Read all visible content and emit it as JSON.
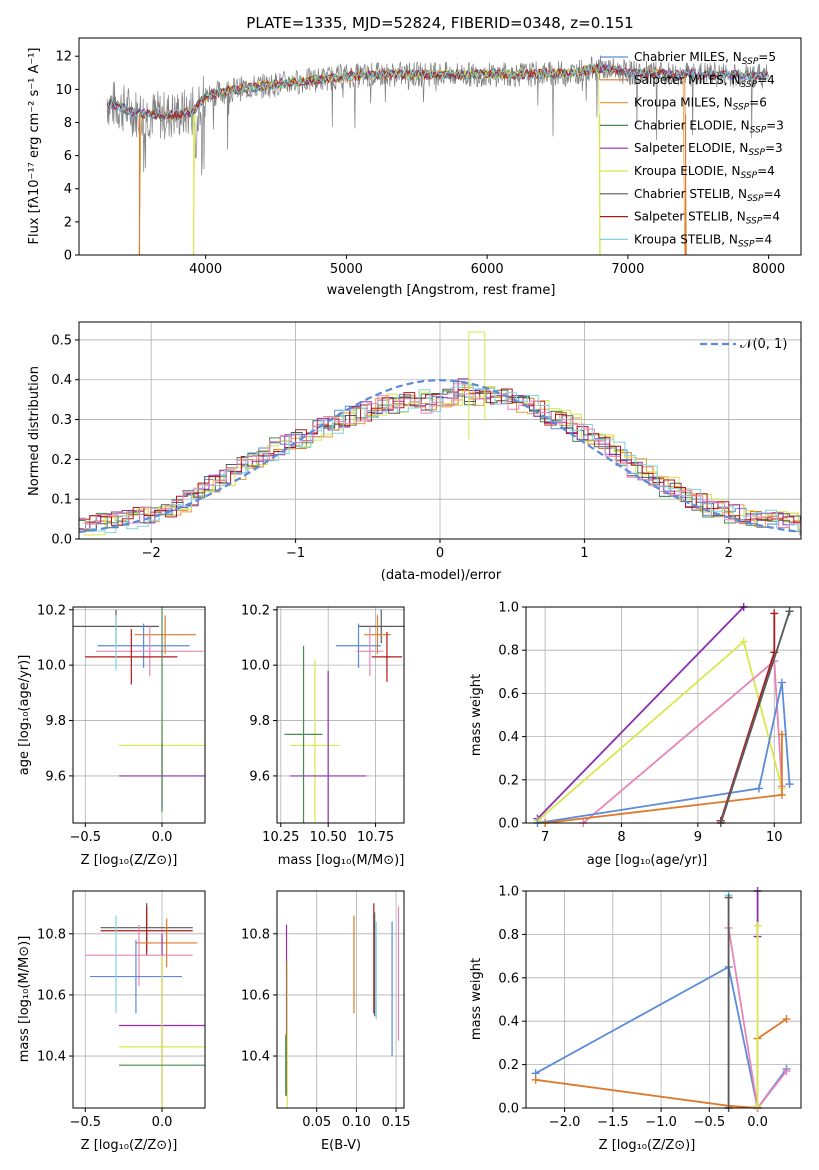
{
  "title": "PLATE=1335, MJD=52824, FIBERID=0348, z=0.151",
  "colors": {
    "chabrier_miles": "#5b8bd9",
    "salpeter_miles": "#e07a2a",
    "kroupa_miles": "#e8a040",
    "chabrier_elodie": "#4a8a50",
    "salpeter_elodie": "#8f2fb0",
    "kroupa_elodie": "#d8e84a",
    "chabrier_stelib": "#5a5a5a",
    "salpeter_stelib": "#b01818",
    "kroupa_stelib": "#80d4e0",
    "pink": "#e884b8",
    "data": "#808080",
    "normal": "#5b8bd9"
  },
  "panels": {
    "spectrum": {
      "xlabel": "wavelength [Angstrom, rest frame]",
      "ylabel": "Flux [fλ10⁻¹⁷ erg cm⁻² s⁻¹ A⁻¹]",
      "xticks": [
        "4000",
        "5000",
        "6000",
        "7000",
        "8000"
      ],
      "yticks": [
        "0",
        "2",
        "4",
        "6",
        "8",
        "10",
        "12"
      ],
      "legend": [
        "Chabrier MILES, N_SSP=5",
        "Salpeter MILES, N_SSP=4",
        "Kroupa MILES, N_SSP=6",
        "Chabrier ELODIE, N_SSP=3",
        "Salpeter ELODIE, N_SSP=3",
        "Kroupa ELODIE, N_SSP=4",
        "Chabrier STELIB, N_SSP=4",
        "Salpeter STELIB, N_SSP=4",
        "Kroupa STELIB, N_SSP=4"
      ]
    },
    "residual": {
      "xlabel": "(data-model)/error",
      "ylabel": "Normed distribution",
      "xticks": [
        "−2",
        "−1",
        "0",
        "1",
        "2"
      ],
      "yticks": [
        "0.0",
        "0.1",
        "0.2",
        "0.3",
        "0.4",
        "0.5"
      ],
      "legend": "𝒩(0, 1)"
    },
    "age_z": {
      "xlabel": "Z [log₁₀(Z/Z⊙)]",
      "ylabel": "age  [log₁₀(age/yr)]",
      "xticks": [
        "−0.5",
        "0.0"
      ],
      "yticks": [
        "9.6",
        "9.8",
        "10.0",
        "10.2"
      ]
    },
    "age_mass": {
      "xlabel": "mass [log₁₀(M/M⊙)]",
      "xticks": [
        "10.25",
        "10.50",
        "10.75"
      ],
      "yticks": [
        "9.6",
        "9.8",
        "10.0",
        "10.2"
      ]
    },
    "weight_age": {
      "xlabel": "age  [log₁₀(age/yr)]",
      "ylabel": "mass weight",
      "xticks": [
        "7",
        "8",
        "9",
        "10"
      ],
      "yticks": [
        "0.0",
        "0.2",
        "0.4",
        "0.6",
        "0.8",
        "1.0"
      ]
    },
    "mass_z": {
      "xlabel": "Z [log₁₀(Z/Z⊙)]",
      "ylabel": "mass [log₁₀(M/M⊙)]",
      "xticks": [
        "−0.5",
        "0.0"
      ],
      "yticks": [
        "10.4",
        "10.6",
        "10.8"
      ]
    },
    "mass_ebv": {
      "xlabel": "E(B-V)",
      "xticks": [
        "0.05",
        "0.10",
        "0.15"
      ],
      "yticks": [
        "10.4",
        "10.6",
        "10.8"
      ]
    },
    "weight_z": {
      "xlabel": "Z [log₁₀(Z/Z⊙)]",
      "ylabel": "mass weight",
      "xticks": [
        "−2.0",
        "−1.5",
        "−1.0",
        "−0.5",
        "0.0"
      ],
      "yticks": [
        "0.0",
        "0.2",
        "0.4",
        "0.6",
        "0.8",
        "1.0"
      ]
    }
  },
  "chart_data": [
    {
      "type": "line",
      "title": "PLATE=1335, MJD=52824, FIBERID=0348, z=0.151",
      "xlabel": "wavelength [Angstrom, rest frame]",
      "ylabel": "Flux [fλ10⁻¹⁷ erg cm⁻² s⁻¹ A⁻¹]",
      "xlim": [
        3100,
        8230
      ],
      "ylim": [
        0,
        13.1
      ],
      "series_names": [
        "Chabrier MILES, N_SSP=5",
        "Salpeter MILES, N_SSP=4",
        "Kroupa MILES, N_SSP=6",
        "Chabrier ELODIE, N_SSP=3",
        "Salpeter ELODIE, N_SSP=3",
        "Kroupa ELODIE, N_SSP=4",
        "Chabrier STELIB, N_SSP=4",
        "Salpeter STELIB, N_SSP=4",
        "Kroupa STELIB, N_SSP=4"
      ],
      "continuum": [
        [
          3300,
          9.2
        ],
        [
          3500,
          8.6
        ],
        [
          3700,
          8.4
        ],
        [
          3900,
          8.6
        ],
        [
          4000,
          9.6
        ],
        [
          4200,
          10.0
        ],
        [
          4500,
          10.3
        ],
        [
          4800,
          10.6
        ],
        [
          5000,
          10.8
        ],
        [
          5300,
          10.9
        ],
        [
          5600,
          10.9
        ],
        [
          6000,
          10.9
        ],
        [
          6300,
          10.9
        ],
        [
          6600,
          11.0
        ],
        [
          6800,
          11.3
        ],
        [
          7000,
          11.0
        ],
        [
          7300,
          10.9
        ],
        [
          7600,
          10.9
        ],
        [
          8000,
          10.8
        ]
      ],
      "model_drop_edges": [
        3500,
        3900,
        6800,
        7400
      ]
    },
    {
      "type": "line",
      "xlabel": "(data-model)/error",
      "ylabel": "Normed distribution",
      "xlim": [
        -2.5,
        2.5
      ],
      "ylim": [
        0,
        0.545
      ],
      "bin_width": 0.1,
      "bins_left": -2.5,
      "histogram": [
        0.03,
        0.035,
        0.04,
        0.045,
        0.05,
        0.055,
        0.06,
        0.065,
        0.07,
        0.09,
        0.1,
        0.12,
        0.14,
        0.15,
        0.17,
        0.19,
        0.2,
        0.22,
        0.23,
        0.24,
        0.25,
        0.26,
        0.28,
        0.29,
        0.3,
        0.31,
        0.32,
        0.33,
        0.34,
        0.34,
        0.35,
        0.35,
        0.34,
        0.35,
        0.36,
        0.38,
        0.36,
        0.37,
        0.36,
        0.36,
        0.34,
        0.34,
        0.33,
        0.31,
        0.3,
        0.29,
        0.27,
        0.26,
        0.24,
        0.22,
        0.2,
        0.18,
        0.16,
        0.15,
        0.13,
        0.12,
        0.1,
        0.09,
        0.08,
        0.07,
        0.065,
        0.06,
        0.055,
        0.05,
        0.045,
        0.04,
        0.035,
        0.03,
        0.03,
        0.028
      ],
      "normal_legend": "𝒩(0, 1)"
    },
    {
      "type": "scatter",
      "xlabel": "Z [log₁₀(Z/Z⊙)]",
      "ylabel": "age  [log₁₀(age/yr)]",
      "xlim": [
        -0.58,
        0.28
      ],
      "ylim": [
        9.43,
        10.21
      ],
      "points": [
        {
          "x": -0.3,
          "y": 10.14,
          "xerr": 0.28,
          "yerr": 0.06,
          "color": "chabrier_stelib"
        },
        {
          "x": 0.02,
          "y": 10.11,
          "xerr": 0.2,
          "yerr": 0.07,
          "color": "salpeter_miles"
        },
        {
          "x": -0.12,
          "y": 10.07,
          "xerr": 0.3,
          "yerr": 0.08,
          "color": "chabrier_miles"
        },
        {
          "x": -0.08,
          "y": 10.05,
          "xerr": 0.35,
          "yerr": 0.09,
          "color": "pink"
        },
        {
          "x": -0.2,
          "y": 10.03,
          "xerr": 0.3,
          "yerr": 0.1,
          "color": "salpeter_stelib"
        },
        {
          "x": -0.3,
          "y": 10.08,
          "xerr": 0.0,
          "yerr": 0.1,
          "color": "kroupa_stelib"
        },
        {
          "x": 0.0,
          "y": 9.71,
          "xerr": 0.28,
          "yerr": 0.12,
          "color": "kroupa_elodie"
        },
        {
          "x": 0.0,
          "y": 9.6,
          "xerr": 0.28,
          "yerr": 0.12,
          "color": "salpeter_elodie"
        },
        {
          "x": 0.0,
          "y": 9.85,
          "xerr": 0.0,
          "yerr": 0.38,
          "color": "chabrier_elodie"
        }
      ]
    },
    {
      "type": "scatter",
      "xlabel": "mass [log₁₀(M/M⊙)]",
      "xlim": [
        10.23,
        10.9
      ],
      "ylim": [
        9.43,
        10.21
      ],
      "points": [
        {
          "x": 10.78,
          "y": 10.14,
          "xerr": 0.12,
          "yerr": 0.06,
          "color": "chabrier_stelib"
        },
        {
          "x": 10.76,
          "y": 10.11,
          "xerr": 0.07,
          "yerr": 0.07,
          "color": "salpeter_miles"
        },
        {
          "x": 10.66,
          "y": 10.07,
          "xerr": 0.12,
          "yerr": 0.08,
          "color": "chabrier_miles"
        },
        {
          "x": 10.72,
          "y": 10.05,
          "xerr": 0.07,
          "yerr": 0.09,
          "color": "pink"
        },
        {
          "x": 10.81,
          "y": 10.03,
          "xerr": 0.08,
          "yerr": 0.09,
          "color": "salpeter_stelib"
        },
        {
          "x": 10.43,
          "y": 9.71,
          "xerr": 0.13,
          "yerr": 0.31,
          "color": "kroupa_elodie"
        },
        {
          "x": 10.5,
          "y": 9.6,
          "xerr": 0.2,
          "yerr": 0.38,
          "color": "salpeter_elodie"
        },
        {
          "x": 10.37,
          "y": 9.75,
          "xerr": 0.1,
          "yerr": 0.32,
          "color": "chabrier_elodie"
        }
      ]
    },
    {
      "type": "line",
      "xlabel": "age  [log₁₀(age/yr)]",
      "ylabel": "mass weight",
      "xlim": [
        6.75,
        10.35
      ],
      "ylim": [
        0,
        1.0
      ],
      "series": [
        {
          "color": "salpeter_elodie",
          "x": [
            6.9,
            9.6
          ],
          "y": [
            0.02,
            1.0
          ]
        },
        {
          "color": "kroupa_elodie",
          "x": [
            6.9,
            9.6,
            10.1
          ],
          "y": [
            0.01,
            0.84,
            0.16
          ]
        },
        {
          "color": "pink",
          "x": [
            7.5,
            10.0,
            10.1
          ],
          "y": [
            0.0,
            0.75,
            0.17
          ]
        },
        {
          "color": "chabrier_miles",
          "x": [
            6.9,
            9.8,
            10.1,
            10.2
          ],
          "y": [
            0.0,
            0.16,
            0.65,
            0.18
          ]
        },
        {
          "color": "salpeter_miles",
          "x": [
            7.0,
            10.1,
            10.1
          ],
          "y": [
            0.0,
            0.13,
            0.41
          ]
        },
        {
          "color": "salpeter_stelib",
          "x": [
            9.3,
            10.0,
            10.0
          ],
          "y": [
            0.01,
            0.79,
            0.97
          ]
        },
        {
          "color": "kroupa_stelib",
          "x": [
            9.3,
            10.2
          ],
          "y": [
            0.0,
            0.98
          ]
        },
        {
          "color": "chabrier_stelib",
          "x": [
            9.3,
            10.2
          ],
          "y": [
            0.0,
            0.98
          ]
        }
      ]
    },
    {
      "type": "scatter",
      "xlabel": "Z [log₁₀(Z/Z⊙)]",
      "ylabel": "mass [log₁₀(M/M⊙)]",
      "xlim": [
        -0.58,
        0.28
      ],
      "ylim": [
        10.23,
        10.94
      ],
      "points": [
        {
          "x": -0.1,
          "y": 10.82,
          "xerr": 0.3,
          "yerr": 0.08,
          "color": "chabrier_stelib"
        },
        {
          "x": -0.1,
          "y": 10.81,
          "xerr": 0.3,
          "yerr": 0.08,
          "color": "salpeter_stelib"
        },
        {
          "x": 0.03,
          "y": 10.77,
          "xerr": 0.2,
          "yerr": 0.08,
          "color": "salpeter_miles"
        },
        {
          "x": -0.15,
          "y": 10.73,
          "xerr": 0.35,
          "yerr": 0.1,
          "color": "pink"
        },
        {
          "x": -0.17,
          "y": 10.66,
          "xerr": 0.3,
          "yerr": 0.12,
          "color": "chabrier_miles"
        },
        {
          "x": -0.3,
          "y": 10.7,
          "xerr": 0.0,
          "yerr": 0.16,
          "color": "kroupa_stelib"
        },
        {
          "x": 0.0,
          "y": 10.5,
          "xerr": 0.28,
          "yerr": 0.3,
          "color": "salpeter_elodie"
        },
        {
          "x": 0.0,
          "y": 10.43,
          "xerr": 0.28,
          "yerr": 0.3,
          "color": "kroupa_elodie"
        },
        {
          "x": 0.0,
          "y": 10.37,
          "xerr": 0.28,
          "yerr": 0.0,
          "color": "chabrier_elodie"
        }
      ]
    },
    {
      "type": "scatter",
      "xlabel": "E(B-V)",
      "xlim": [
        0.0,
        0.16
      ],
      "ylim": [
        10.23,
        10.94
      ],
      "points": [
        {
          "x": 0.012,
          "y": 10.55,
          "yerr": 0.28,
          "color": "salpeter_elodie"
        },
        {
          "x": 0.013,
          "y": 10.43,
          "yerr": 0.28,
          "color": "kroupa_elodie"
        },
        {
          "x": 0.011,
          "y": 10.37,
          "yerr": 0.1,
          "color": "chabrier_elodie"
        },
        {
          "x": 0.097,
          "y": 10.7,
          "yerr": 0.16,
          "color": "salpeter_miles"
        },
        {
          "x": 0.122,
          "y": 10.72,
          "yerr": 0.18,
          "color": "salpeter_stelib"
        },
        {
          "x": 0.123,
          "y": 10.7,
          "yerr": 0.17,
          "color": "chabrier_stelib"
        },
        {
          "x": 0.125,
          "y": 10.68,
          "yerr": 0.16,
          "color": "kroupa_stelib"
        },
        {
          "x": 0.145,
          "y": 10.62,
          "yerr": 0.22,
          "color": "chabrier_miles"
        },
        {
          "x": 0.153,
          "y": 10.67,
          "yerr": 0.22,
          "color": "pink"
        }
      ]
    },
    {
      "type": "line",
      "xlabel": "Z [log₁₀(Z/Z⊙)]",
      "ylabel": "mass weight",
      "xlim": [
        -2.4,
        0.45
      ],
      "ylim": [
        0,
        1.0
      ],
      "series": [
        {
          "color": "chabrier_miles",
          "x": [
            -2.3,
            -0.3,
            0.0,
            0.3
          ],
          "y": [
            0.16,
            0.65,
            0.0,
            0.18
          ]
        },
        {
          "color": "salpeter_miles",
          "x": [
            -2.3,
            -0.3,
            0.0,
            0.0,
            0.3
          ],
          "y": [
            0.13,
            0.01,
            0.0,
            0.32,
            0.41
          ]
        },
        {
          "color": "pink",
          "x": [
            -0.3,
            0.0,
            0.3
          ],
          "y": [
            0.83,
            0.0,
            0.17
          ]
        },
        {
          "color": "kroupa_stelib",
          "x": [
            -0.3,
            -0.3
          ],
          "y": [
            0.0,
            0.98
          ]
        },
        {
          "color": "chabrier_stelib",
          "x": [
            -0.3,
            -0.3
          ],
          "y": [
            0.0,
            0.97
          ]
        },
        {
          "color": "salpeter_elodie",
          "x": [
            0.0,
            0.0
          ],
          "y": [
            0.79,
            1.0
          ]
        },
        {
          "color": "kroupa_elodie",
          "x": [
            0.0,
            0.0
          ],
          "y": [
            0.01,
            0.84
          ]
        }
      ]
    }
  ]
}
